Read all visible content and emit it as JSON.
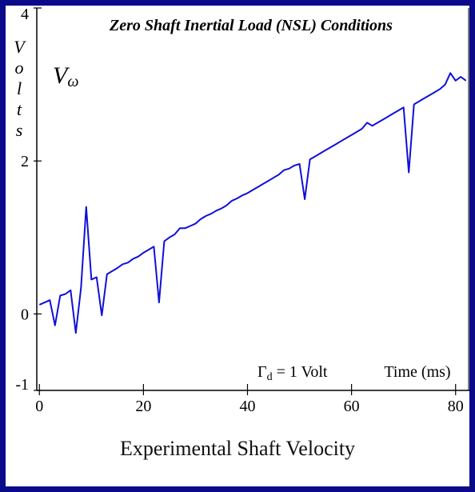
{
  "chart_data": {
    "type": "line",
    "title": "Zero Shaft Inertial Load (NSL) Conditions",
    "series_label": "V",
    "series_label_sub": "ω",
    "ylabel": "Volts",
    "xlabel": "Time (ms)",
    "annotation": {
      "main": "Γ",
      "sub": "d",
      "rest": " = 1 Volt"
    },
    "caption": "Experimental Shaft Velocity",
    "xlim": [
      -0.5,
      82.5
    ],
    "ylim": [
      -1,
      4
    ],
    "x_ticks": [
      0,
      20,
      40,
      60,
      80
    ],
    "y_ticks": [
      -1,
      0,
      2,
      4
    ],
    "colors": {
      "line": "#1010d8",
      "frame": "#0a0a8a",
      "axis": "#000000"
    },
    "series": [
      {
        "x": [
          0,
          1,
          2,
          3,
          4,
          5,
          6,
          7,
          8,
          9,
          10,
          11,
          12,
          13,
          14,
          15,
          16,
          17,
          18,
          19,
          20,
          21,
          22,
          23,
          24,
          25,
          26,
          27,
          28,
          29,
          30,
          31,
          32,
          33,
          34,
          35,
          36,
          37,
          38,
          39,
          40,
          41,
          42,
          43,
          44,
          45,
          46,
          47,
          48,
          49,
          50,
          51,
          52,
          53,
          54,
          55,
          56,
          57,
          58,
          59,
          60,
          61,
          62,
          63,
          64,
          65,
          66,
          67,
          68,
          69,
          70,
          71,
          72,
          73,
          74,
          75,
          76,
          77,
          78,
          79,
          80,
          81,
          82
        ],
        "y": [
          0.12,
          0.15,
          0.18,
          -0.15,
          0.24,
          0.26,
          0.31,
          -0.25,
          0.34,
          1.4,
          0.45,
          0.48,
          -0.02,
          0.52,
          0.56,
          0.6,
          0.65,
          0.67,
          0.72,
          0.75,
          0.8,
          0.84,
          0.88,
          0.15,
          0.95,
          1.0,
          1.04,
          1.12,
          1.12,
          1.15,
          1.18,
          1.24,
          1.28,
          1.31,
          1.35,
          1.38,
          1.42,
          1.48,
          1.51,
          1.55,
          1.58,
          1.62,
          1.66,
          1.7,
          1.74,
          1.78,
          1.82,
          1.88,
          1.9,
          1.94,
          1.96,
          1.5,
          2.02,
          2.06,
          2.1,
          2.14,
          2.18,
          2.22,
          2.26,
          2.3,
          2.34,
          2.38,
          2.42,
          2.5,
          2.46,
          2.5,
          2.54,
          2.58,
          2.62,
          2.66,
          2.7,
          1.85,
          2.74,
          2.78,
          2.82,
          2.86,
          2.9,
          2.94,
          3.0,
          3.15,
          3.05,
          3.1,
          3.05
        ]
      }
    ]
  }
}
